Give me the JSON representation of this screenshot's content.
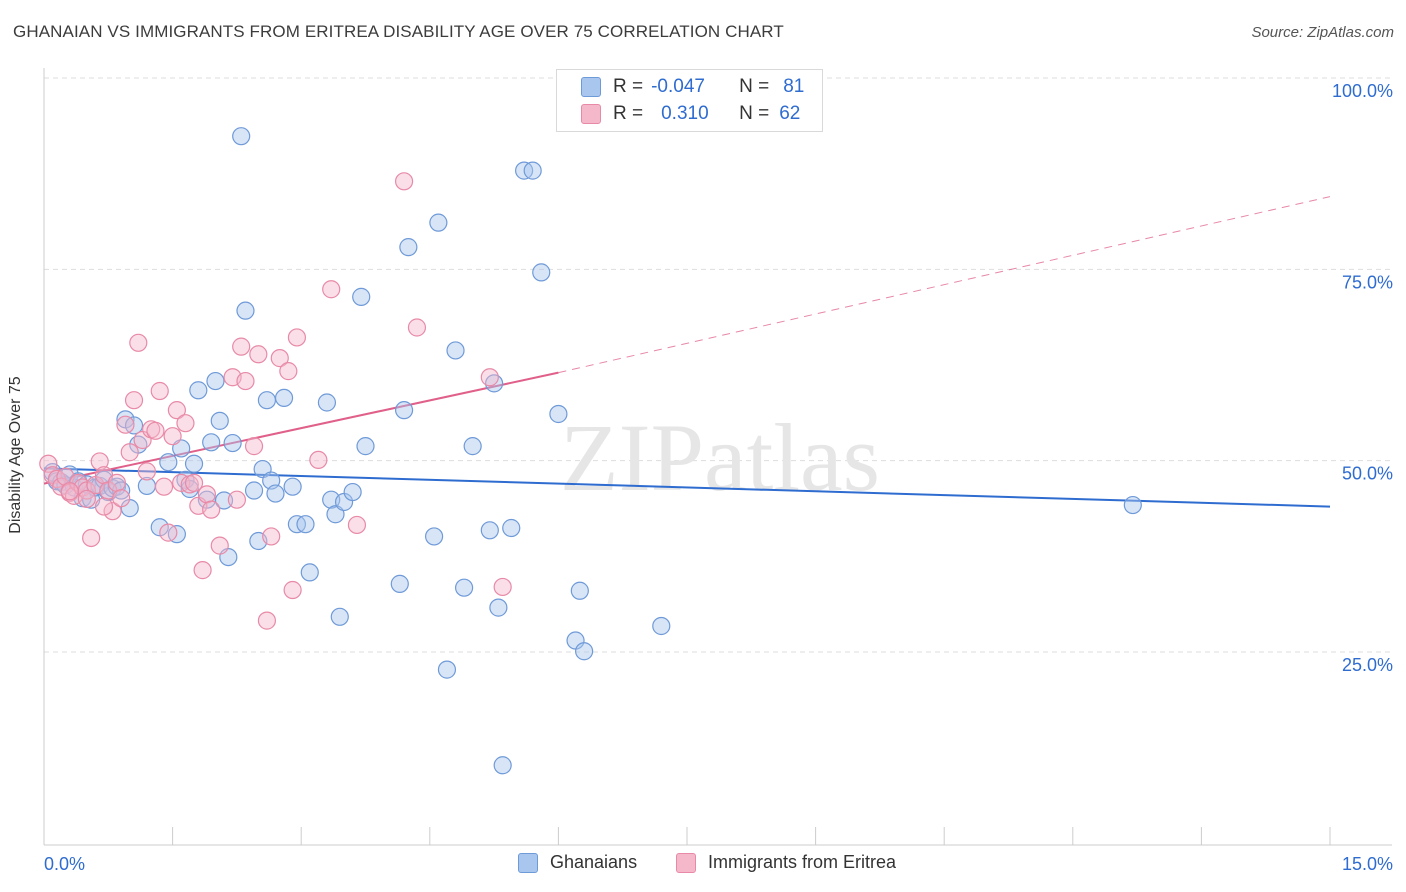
{
  "title": "GHANAIAN VS IMMIGRANTS FROM ERITREA DISABILITY AGE OVER 75 CORRELATION CHART",
  "source": "Source: ZipAtlas.com",
  "watermark": "ZIPatlas",
  "stats_box": {
    "rows": [
      {
        "r_label": "R =",
        "r_value": "-0.047",
        "n_label": "N =",
        "n_value": "81"
      },
      {
        "r_label": "R =",
        "r_value": "0.310",
        "n_label": "N =",
        "n_value": "62"
      }
    ]
  },
  "legend": {
    "items": [
      "Ghanaians",
      "Immigrants from Eritrea"
    ]
  },
  "colors": {
    "blue_fill": "#a9c6ee",
    "blue_stroke": "#6f9ad8",
    "blue_line": "#2f6cd0",
    "pink_fill": "#f5b8cb",
    "pink_stroke": "#e88aa7",
    "pink_line": "#e0608a",
    "tick_label": "#2f6cd0",
    "grid": "#dddddd"
  },
  "chart_data": {
    "type": "scatter",
    "title": "GHANAIAN VS IMMIGRANTS FROM ERITREA DISABILITY AGE OVER 75 CORRELATION CHART",
    "xlabel": "",
    "ylabel": "Disability Age Over 75",
    "xlim": [
      0,
      15
    ],
    "ylim": [
      0,
      100
    ],
    "x_tick_labels": [
      "0.0%",
      "15.0%"
    ],
    "y_ticks": [
      25,
      50,
      75,
      100
    ],
    "y_tick_labels": [
      "25.0%",
      "50.0%",
      "75.0%",
      "100.0%"
    ],
    "grid": true,
    "legend_position": "bottom",
    "series": [
      {
        "name": "Ghanaians",
        "r": -0.047,
        "n": 81,
        "trend": {
          "x": [
            0.0,
            15.0
          ],
          "y": [
            49.0,
            44.0
          ],
          "dashed_to": null
        },
        "points": [
          [
            0.1,
            48.5
          ],
          [
            0.15,
            47.3
          ],
          [
            0.2,
            47.2
          ],
          [
            0.25,
            46.8
          ],
          [
            0.3,
            48.2
          ],
          [
            0.35,
            46.5
          ],
          [
            0.4,
            47.3
          ],
          [
            0.45,
            45.1
          ],
          [
            0.5,
            46.9
          ],
          [
            0.55,
            44.9
          ],
          [
            0.6,
            46.5
          ],
          [
            0.65,
            46.7
          ],
          [
            0.7,
            47.5
          ],
          [
            0.75,
            45.9
          ],
          [
            0.8,
            46.4
          ],
          [
            0.85,
            46.6
          ],
          [
            0.9,
            46.1
          ],
          [
            0.95,
            55.4
          ],
          [
            1.0,
            43.8
          ],
          [
            1.05,
            54.6
          ],
          [
            1.1,
            52.1
          ],
          [
            1.2,
            46.7
          ],
          [
            1.35,
            41.3
          ],
          [
            1.45,
            49.8
          ],
          [
            1.55,
            40.4
          ],
          [
            1.6,
            51.6
          ],
          [
            1.65,
            47.5
          ],
          [
            1.7,
            46.3
          ],
          [
            1.75,
            49.6
          ],
          [
            1.8,
            59.2
          ],
          [
            1.9,
            44.9
          ],
          [
            1.95,
            52.4
          ],
          [
            2.0,
            60.4
          ],
          [
            2.05,
            55.2
          ],
          [
            2.1,
            44.8
          ],
          [
            2.15,
            37.4
          ],
          [
            2.2,
            52.3
          ],
          [
            2.3,
            92.4
          ],
          [
            2.35,
            69.6
          ],
          [
            2.45,
            46.1
          ],
          [
            2.5,
            39.5
          ],
          [
            2.55,
            48.9
          ],
          [
            2.6,
            57.9
          ],
          [
            2.65,
            47.4
          ],
          [
            2.7,
            45.7
          ],
          [
            2.8,
            58.2
          ],
          [
            2.9,
            46.6
          ],
          [
            2.95,
            41.7
          ],
          [
            3.05,
            41.7
          ],
          [
            3.1,
            35.4
          ],
          [
            3.3,
            57.6
          ],
          [
            3.35,
            44.9
          ],
          [
            3.4,
            43.0
          ],
          [
            3.45,
            29.6
          ],
          [
            3.5,
            44.6
          ],
          [
            3.6,
            45.9
          ],
          [
            3.7,
            71.4
          ],
          [
            3.75,
            51.9
          ],
          [
            4.15,
            33.9
          ],
          [
            4.2,
            56.6
          ],
          [
            4.25,
            77.9
          ],
          [
            4.55,
            40.1
          ],
          [
            4.6,
            81.1
          ],
          [
            4.7,
            22.7
          ],
          [
            4.8,
            64.4
          ],
          [
            4.9,
            33.4
          ],
          [
            5.0,
            51.9
          ],
          [
            5.2,
            40.9
          ],
          [
            5.25,
            60.1
          ],
          [
            5.3,
            30.8
          ],
          [
            5.35,
            10.2
          ],
          [
            5.45,
            41.2
          ],
          [
            5.6,
            87.9
          ],
          [
            5.7,
            87.9
          ],
          [
            5.8,
            74.6
          ],
          [
            6.0,
            56.1
          ],
          [
            6.2,
            26.5
          ],
          [
            6.25,
            33.0
          ],
          [
            6.3,
            25.1
          ],
          [
            7.2,
            28.4
          ],
          [
            12.7,
            44.2
          ]
        ]
      },
      {
        "name": "Immigrants from Eritrea",
        "r": 0.31,
        "n": 62,
        "trend": {
          "x": [
            0.0,
            6.0
          ],
          "y": [
            47.0,
            61.5
          ],
          "dashed_to": [
            15.0,
            84.5
          ]
        },
        "points": [
          [
            0.05,
            49.6
          ],
          [
            0.1,
            48.1
          ],
          [
            0.15,
            47.6
          ],
          [
            0.2,
            46.6
          ],
          [
            0.25,
            47.9
          ],
          [
            0.3,
            45.8
          ],
          [
            0.35,
            45.4
          ],
          [
            0.4,
            47.1
          ],
          [
            0.45,
            46.5
          ],
          [
            0.5,
            46.1
          ],
          [
            0.55,
            39.9
          ],
          [
            0.6,
            46.8
          ],
          [
            0.65,
            49.9
          ],
          [
            0.7,
            48.1
          ],
          [
            0.75,
            46.1
          ],
          [
            0.8,
            43.4
          ],
          [
            0.85,
            47.1
          ],
          [
            0.9,
            45.1
          ],
          [
            0.95,
            54.7
          ],
          [
            1.0,
            51.1
          ],
          [
            1.05,
            57.9
          ],
          [
            1.1,
            65.4
          ],
          [
            1.15,
            52.7
          ],
          [
            1.2,
            48.6
          ],
          [
            1.25,
            54.1
          ],
          [
            1.3,
            53.9
          ],
          [
            1.35,
            59.1
          ],
          [
            1.4,
            46.6
          ],
          [
            1.45,
            40.6
          ],
          [
            1.5,
            53.2
          ],
          [
            1.55,
            56.6
          ],
          [
            1.6,
            47.1
          ],
          [
            1.65,
            54.9
          ],
          [
            1.7,
            46.9
          ],
          [
            1.75,
            47.1
          ],
          [
            1.8,
            44.1
          ],
          [
            1.85,
            35.7
          ],
          [
            1.9,
            45.6
          ],
          [
            1.95,
            43.6
          ],
          [
            2.05,
            38.9
          ],
          [
            2.2,
            60.9
          ],
          [
            2.25,
            44.9
          ],
          [
            2.3,
            64.9
          ],
          [
            2.35,
            60.4
          ],
          [
            2.45,
            51.9
          ],
          [
            2.5,
            63.9
          ],
          [
            2.6,
            29.1
          ],
          [
            2.65,
            40.1
          ],
          [
            2.75,
            63.4
          ],
          [
            2.85,
            61.7
          ],
          [
            2.9,
            33.1
          ],
          [
            2.95,
            66.1
          ],
          [
            3.2,
            50.1
          ],
          [
            3.35,
            72.4
          ],
          [
            3.65,
            41.6
          ],
          [
            4.2,
            86.5
          ],
          [
            4.35,
            67.4
          ],
          [
            5.2,
            60.9
          ],
          [
            5.35,
            33.5
          ],
          [
            0.3,
            46.0
          ],
          [
            0.5,
            45.0
          ],
          [
            0.7,
            44.0
          ]
        ]
      }
    ]
  }
}
